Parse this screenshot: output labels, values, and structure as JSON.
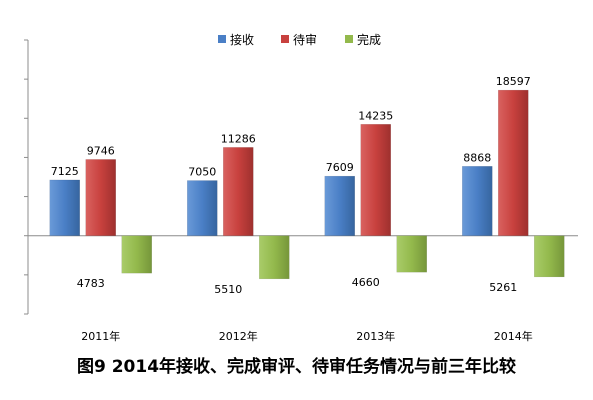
{
  "caption": "图9 2014年接收、完成审评、待审任务情况与前三年比较",
  "chart_data": {
    "type": "bar",
    "title": "",
    "xlabel": "",
    "ylabel": "",
    "categories": [
      "2011年",
      "2012年",
      "2013年",
      "2014年"
    ],
    "series": [
      {
        "name": "接收",
        "values": [
          7125,
          7050,
          7609,
          8868
        ],
        "color": "#4a7fc6"
      },
      {
        "name": "待审",
        "values": [
          9746,
          11286,
          14235,
          18597
        ],
        "color": "#c8413e"
      },
      {
        "name": "完成",
        "values": [
          -4783,
          -5510,
          -4660,
          -5261
        ],
        "color": "#93b94c"
      }
    ],
    "data_labels": [
      [
        "7125",
        "7050",
        "7609",
        "8868"
      ],
      [
        "9746",
        "11286",
        "14235",
        "18597"
      ],
      [
        "4783",
        "5510",
        "4660",
        "5261"
      ]
    ],
    "ylim": [
      -10000,
      25000
    ],
    "legend_position": "top-center",
    "grid": false
  }
}
